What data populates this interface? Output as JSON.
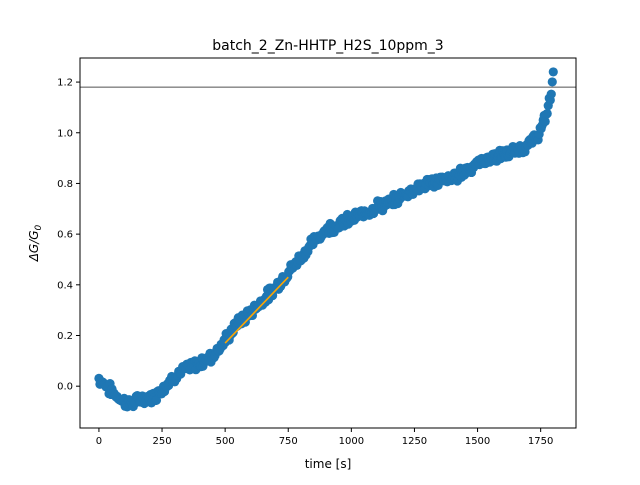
{
  "chart_data": {
    "type": "scatter",
    "title": "batch_2_Zn-HHTP_H2S_10ppm_3",
    "xlabel": "time [s]",
    "ylabel_base": "ΔG/G",
    "ylabel_subscript": "0",
    "xlim": [
      -75,
      1890
    ],
    "ylim": [
      -0.165,
      1.295
    ],
    "xticks": [
      0,
      250,
      500,
      750,
      1000,
      1250,
      1500,
      1750
    ],
    "yticks": [
      0.0,
      0.2,
      0.4,
      0.6,
      0.8,
      1.0,
      1.2
    ],
    "ytick_labels": [
      "0.0",
      "0.2",
      "0.4",
      "0.6",
      "0.8",
      "1.0",
      "1.2"
    ],
    "grid": false,
    "series": [
      {
        "kind": "scatter",
        "color": "#1f77b4",
        "x_start": 0,
        "x_end": 1800,
        "x_step": 4,
        "noise_amplitude": 0.018,
        "profile": [
          [
            0,
            0.03
          ],
          [
            30,
            0.0
          ],
          [
            60,
            -0.03
          ],
          [
            100,
            -0.06
          ],
          [
            130,
            -0.07
          ],
          [
            170,
            -0.05
          ],
          [
            220,
            -0.04
          ],
          [
            250,
            -0.01
          ],
          [
            300,
            0.04
          ],
          [
            350,
            0.07
          ],
          [
            400,
            0.09
          ],
          [
            450,
            0.12
          ],
          [
            500,
            0.18
          ],
          [
            550,
            0.25
          ],
          [
            600,
            0.29
          ],
          [
            650,
            0.34
          ],
          [
            700,
            0.39
          ],
          [
            750,
            0.45
          ],
          [
            800,
            0.51
          ],
          [
            850,
            0.57
          ],
          [
            900,
            0.62
          ],
          [
            950,
            0.64
          ],
          [
            1000,
            0.66
          ],
          [
            1050,
            0.68
          ],
          [
            1100,
            0.71
          ],
          [
            1150,
            0.72
          ],
          [
            1200,
            0.75
          ],
          [
            1250,
            0.78
          ],
          [
            1300,
            0.8
          ],
          [
            1350,
            0.81
          ],
          [
            1400,
            0.82
          ],
          [
            1450,
            0.85
          ],
          [
            1500,
            0.88
          ],
          [
            1550,
            0.9
          ],
          [
            1600,
            0.91
          ],
          [
            1650,
            0.93
          ],
          [
            1700,
            0.95
          ],
          [
            1730,
            0.98
          ],
          [
            1750,
            1.01
          ],
          [
            1770,
            1.06
          ],
          [
            1790,
            1.15
          ],
          [
            1800,
            1.22
          ]
        ]
      },
      {
        "kind": "line",
        "color": "#ffa500",
        "x": [
          500,
          750
        ],
        "y": [
          0.17,
          0.43
        ]
      }
    ],
    "hline": {
      "y": 1.18,
      "color": "#808080"
    }
  }
}
